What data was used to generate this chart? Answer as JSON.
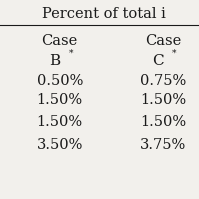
{
  "title": "Percent of total i",
  "col1_header1": "Case",
  "col1_header2": "B",
  "col1_superscript": "*",
  "col2_header1": "Case",
  "col2_header2": "C",
  "col2_superscript": "*",
  "col1_values": [
    "0.50%",
    "1.50%",
    "1.50%",
    "3.50%"
  ],
  "col2_values": [
    "0.75%",
    "1.50%",
    "1.50%",
    "3.75%"
  ],
  "bg_color": "#f2f0ec",
  "text_color": "#1a1a1a",
  "title_fontsize": 10.5,
  "header_fontsize": 10.5,
  "value_fontsize": 10.5
}
